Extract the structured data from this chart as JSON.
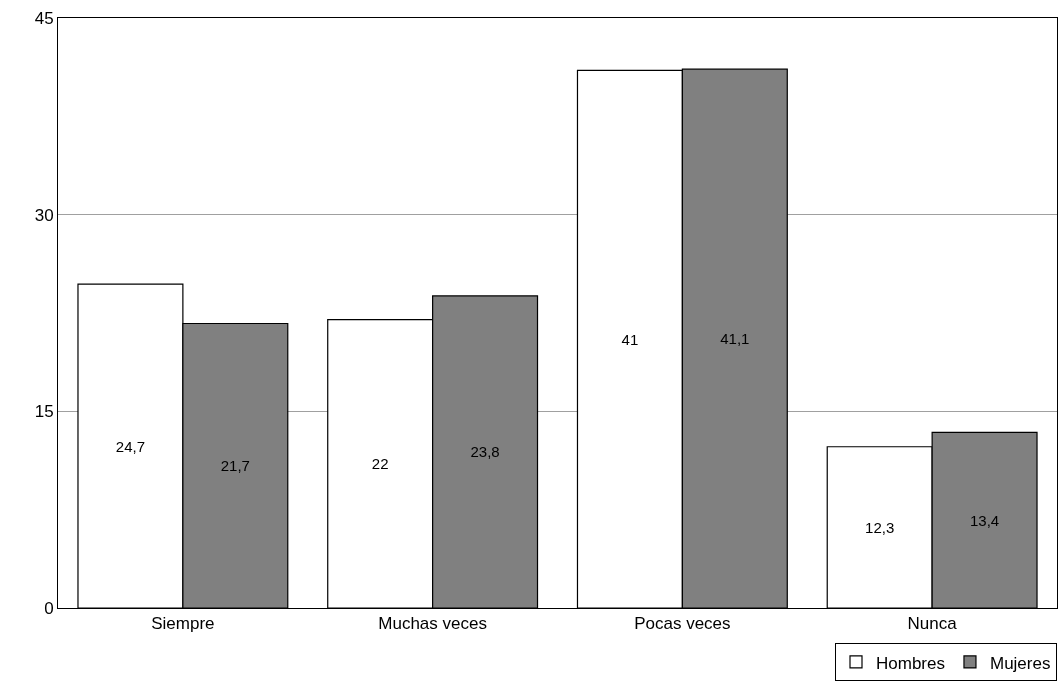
{
  "chart_data": {
    "type": "bar",
    "categories": [
      "Siempre",
      "Muchas veces",
      "Pocas veces",
      "Nunca"
    ],
    "series": [
      {
        "name": "Hombres",
        "color": "#ffffff",
        "values": [
          24.7,
          22,
          41,
          12.3
        ],
        "value_labels": [
          "24,7",
          "22",
          "41",
          "12,3"
        ]
      },
      {
        "name": "Mujeres",
        "color": "#808080",
        "values": [
          21.7,
          23.8,
          41.1,
          13.4
        ],
        "value_labels": [
          "21,7",
          "23,8",
          "41,1",
          "13,4"
        ]
      }
    ],
    "ylim": [
      0,
      45
    ],
    "yticks": [
      0,
      15,
      30,
      45
    ],
    "grid": "y",
    "legend": "bottom right"
  }
}
